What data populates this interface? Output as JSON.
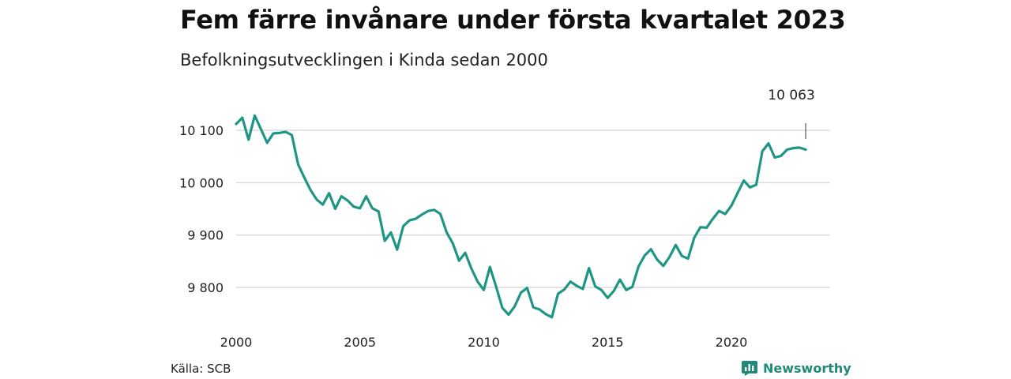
{
  "header": {
    "title": "Fem färre invånare under första kvartalet 2023",
    "subtitle": "Befolkningsutvecklingen i Kinda sedan 2000"
  },
  "footer": {
    "source": "Källa: SCB",
    "brand": "Newsworthy",
    "brand_icon": "bar-chart-logo-icon"
  },
  "colors": {
    "line": "#1f9685",
    "grid": "#dcdcdc",
    "brand": "#1f8a7a"
  },
  "chart_data": {
    "type": "line",
    "title": "Fem färre invånare under första kvartalet 2023",
    "subtitle": "Befolkningsutvecklingen i Kinda sedan 2000",
    "xlabel": "",
    "ylabel": "",
    "xlim": [
      2000,
      2023.0
    ],
    "ylim": [
      9740,
      10120
    ],
    "x_ticks": [
      2000,
      2005,
      2010,
      2015,
      2020
    ],
    "x_tick_labels": [
      "2000",
      "2005",
      "2010",
      "2015",
      "2020"
    ],
    "y_ticks": [
      9800,
      9900,
      10000,
      10100
    ],
    "y_tick_labels": [
      "9 800",
      "9 900",
      "10 000",
      "10 100"
    ],
    "grid": true,
    "annotation": {
      "text": "10 063",
      "x": 2023.0,
      "y": 10063
    },
    "series": [
      {
        "name": "",
        "x": [
          2000.0,
          2000.25,
          2000.5,
          2000.75,
          2001.0,
          2001.25,
          2001.5,
          2001.75,
          2002.0,
          2002.25,
          2002.5,
          2002.75,
          2003.0,
          2003.25,
          2003.5,
          2003.75,
          2004.0,
          2004.25,
          2004.5,
          2004.75,
          2005.0,
          2005.25,
          2005.5,
          2005.75,
          2006.0,
          2006.25,
          2006.5,
          2006.75,
          2007.0,
          2007.25,
          2007.5,
          2007.75,
          2008.0,
          2008.25,
          2008.5,
          2008.75,
          2009.0,
          2009.25,
          2009.5,
          2009.75,
          2010.0,
          2010.25,
          2010.5,
          2010.75,
          2011.0,
          2011.25,
          2011.5,
          2011.75,
          2012.0,
          2012.25,
          2012.5,
          2012.75,
          2013.0,
          2013.25,
          2013.5,
          2013.75,
          2014.0,
          2014.25,
          2014.5,
          2014.75,
          2015.0,
          2015.25,
          2015.5,
          2015.75,
          2016.0,
          2016.25,
          2016.5,
          2016.75,
          2017.0,
          2017.25,
          2017.5,
          2017.75,
          2018.0,
          2018.25,
          2018.5,
          2018.75,
          2019.0,
          2019.25,
          2019.5,
          2019.75,
          2020.0,
          2020.25,
          2020.5,
          2020.75,
          2021.0,
          2021.25,
          2021.5,
          2021.75,
          2022.0,
          2022.25,
          2022.5,
          2022.75,
          2023.0
        ],
        "values": [
          10112,
          10124,
          10082,
          10128,
          10102,
          10076,
          10094,
          10095,
          10097,
          10091,
          10035,
          10010,
          9986,
          9968,
          9958,
          9980,
          9950,
          9974,
          9966,
          9954,
          9951,
          9974,
          9951,
          9945,
          9889,
          9905,
          9872,
          9917,
          9928,
          9931,
          9939,
          9946,
          9948,
          9940,
          9905,
          9884,
          9851,
          9866,
          9836,
          9811,
          9795,
          9839,
          9801,
          9761,
          9748,
          9764,
          9790,
          9799,
          9762,
          9758,
          9749,
          9743,
          9788,
          9796,
          9811,
          9803,
          9797,
          9837,
          9802,
          9795,
          9780,
          9793,
          9815,
          9795,
          9801,
          9840,
          9861,
          9873,
          9853,
          9841,
          9858,
          9881,
          9860,
          9855,
          9895,
          9915,
          9914,
          9931,
          9946,
          9940,
          9956,
          9980,
          10004,
          9991,
          9996,
          10060,
          10075,
          10048,
          10051,
          10063,
          10066,
          10067,
          10063
        ]
      }
    ]
  }
}
